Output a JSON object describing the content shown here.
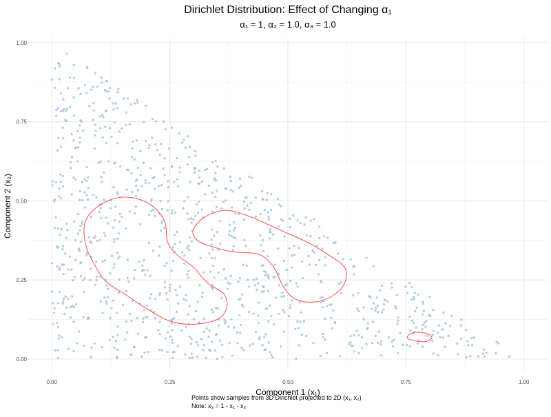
{
  "chart_data": {
    "type": "scatter",
    "title": "Dirichlet Distribution: Effect of Changing α₁",
    "subtitle": "α₁ = 1, α₂ = 1.0, α₃ = 1.0",
    "xlabel": "Component 1 (x₁)",
    "ylabel": "Component 2 (x₂)",
    "caption_lines": [
      "Points show samples from 3D Dirichlet projected to 2D (x₁, x₂)",
      "Note: x₃ = 1 - x₁ - x₂"
    ],
    "xlim": [
      -0.05,
      1.05
    ],
    "ylim": [
      -0.035,
      1.015
    ],
    "x_ticks": [
      0.0,
      0.25,
      0.5,
      0.75,
      1.0
    ],
    "x_tick_labels": [
      "0.00",
      "0.25",
      "0.50",
      "0.75",
      "1.00"
    ],
    "y_ticks": [
      0.0,
      0.25,
      0.5,
      0.75,
      1.0
    ],
    "y_tick_labels": [
      "0.00",
      "0.25",
      "0.50",
      "0.75",
      "1.00"
    ],
    "grid": true,
    "point_color": "#9bbcdc",
    "contour_color": "#ff4b4b",
    "sample_count": 1000,
    "sample_support": "x1 + x2 <= 1",
    "contours": [
      {
        "name": "contour-left",
        "points": [
          [
            0.07,
            0.43
          ],
          [
            0.095,
            0.48
          ],
          [
            0.14,
            0.51
          ],
          [
            0.185,
            0.505
          ],
          [
            0.22,
            0.475
          ],
          [
            0.24,
            0.43
          ],
          [
            0.245,
            0.37
          ],
          [
            0.265,
            0.33
          ],
          [
            0.3,
            0.29
          ],
          [
            0.33,
            0.24
          ],
          [
            0.365,
            0.205
          ],
          [
            0.37,
            0.16
          ],
          [
            0.35,
            0.125
          ],
          [
            0.3,
            0.11
          ],
          [
            0.25,
            0.12
          ],
          [
            0.2,
            0.16
          ],
          [
            0.16,
            0.2
          ],
          [
            0.115,
            0.245
          ],
          [
            0.09,
            0.3
          ],
          [
            0.072,
            0.36
          ]
        ]
      },
      {
        "name": "contour-middle",
        "points": [
          [
            0.3,
            0.41
          ],
          [
            0.325,
            0.45
          ],
          [
            0.37,
            0.47
          ],
          [
            0.42,
            0.45
          ],
          [
            0.48,
            0.41
          ],
          [
            0.54,
            0.37
          ],
          [
            0.58,
            0.335
          ],
          [
            0.62,
            0.29
          ],
          [
            0.62,
            0.24
          ],
          [
            0.595,
            0.2
          ],
          [
            0.555,
            0.18
          ],
          [
            0.515,
            0.19
          ],
          [
            0.49,
            0.23
          ],
          [
            0.47,
            0.29
          ],
          [
            0.44,
            0.33
          ],
          [
            0.38,
            0.34
          ],
          [
            0.33,
            0.36
          ],
          [
            0.305,
            0.38
          ]
        ]
      },
      {
        "name": "contour-small",
        "points": [
          [
            0.755,
            0.075
          ],
          [
            0.77,
            0.085
          ],
          [
            0.795,
            0.08
          ],
          [
            0.805,
            0.067
          ],
          [
            0.79,
            0.055
          ],
          [
            0.768,
            0.058
          ],
          [
            0.754,
            0.065
          ]
        ]
      }
    ]
  }
}
